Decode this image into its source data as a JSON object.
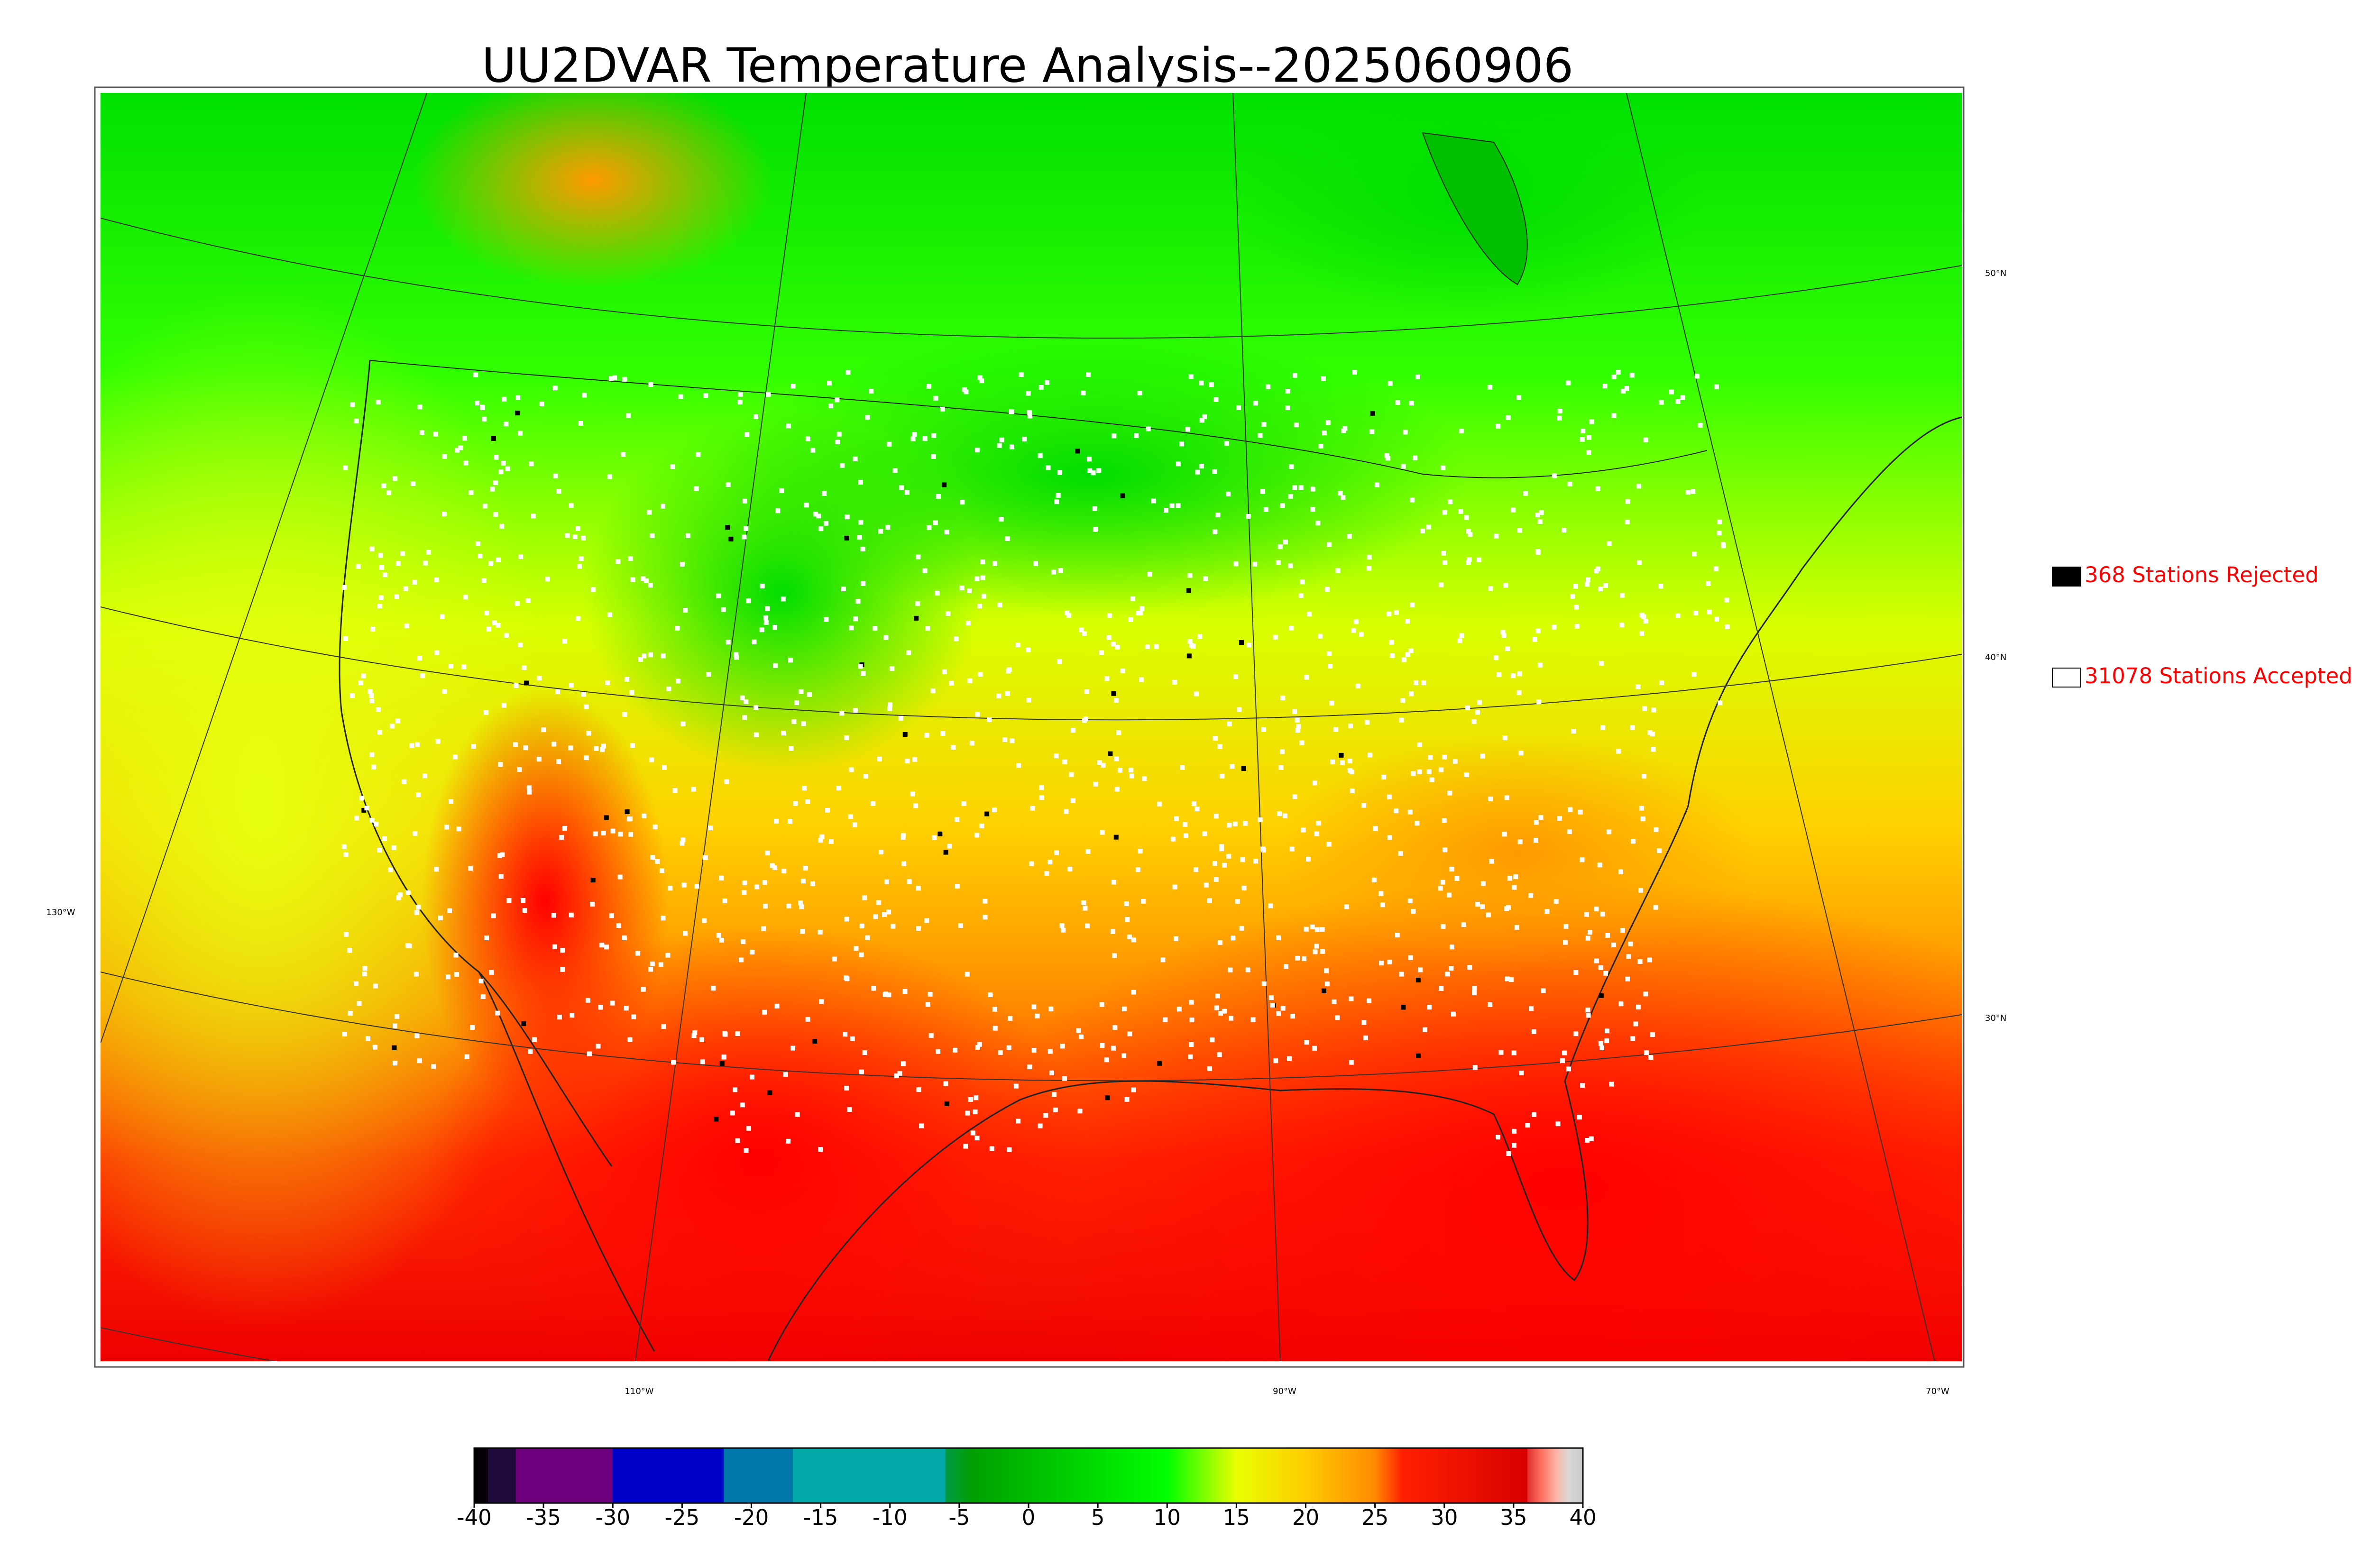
{
  "title": "UU2DVAR Temperature Analysis--2025060906",
  "legend": [
    {
      "label": "368 Stations Rejected",
      "color": "#000000"
    },
    {
      "label": "31078 Stations Accepted",
      "color": "#ffffff"
    }
  ],
  "graticule": {
    "latitude_labels": [
      "50°N",
      "40°N",
      "30°N"
    ],
    "longitude_labels": [
      "130°W",
      "110°W",
      "90°W",
      "70°W"
    ]
  },
  "colorbar": {
    "lim": [
      -40,
      40
    ],
    "ticks": [
      -40,
      -35,
      -30,
      -25,
      -20,
      -15,
      -10,
      -5,
      0,
      5,
      10,
      15,
      20,
      25,
      30,
      35,
      40
    ],
    "stops": [
      {
        "value": -40,
        "color": "#000000"
      },
      {
        "value": -39,
        "color": "#0a0010"
      },
      {
        "value": -39,
        "color": "#1e0a3c"
      },
      {
        "value": -37,
        "color": "#1e0a3c"
      },
      {
        "value": -37,
        "color": "#6e007e"
      },
      {
        "value": -30,
        "color": "#6e007e"
      },
      {
        "value": -30,
        "color": "#0000c8"
      },
      {
        "value": -22,
        "color": "#0000c8"
      },
      {
        "value": -22,
        "color": "#0077aa"
      },
      {
        "value": -17,
        "color": "#0077aa"
      },
      {
        "value": -17,
        "color": "#00a8a8"
      },
      {
        "value": -6,
        "color": "#00a8a8"
      },
      {
        "value": -6,
        "color": "#009944"
      },
      {
        "value": -4,
        "color": "#00a000"
      },
      {
        "value": 10,
        "color": "#00ff00"
      },
      {
        "value": 15,
        "color": "#e8ff00"
      },
      {
        "value": 20,
        "color": "#ffcc00"
      },
      {
        "value": 25,
        "color": "#ff8a00"
      },
      {
        "value": 27,
        "color": "#ff2000"
      },
      {
        "value": 36,
        "color": "#d80000"
      },
      {
        "value": 36,
        "color": "#e03030"
      },
      {
        "value": 37,
        "color": "#ff7060"
      },
      {
        "value": 38,
        "color": "#ffb0a0"
      },
      {
        "value": 39,
        "color": "#d8d8d8"
      },
      {
        "value": 40,
        "color": "#c8c8c8"
      }
    ]
  }
}
